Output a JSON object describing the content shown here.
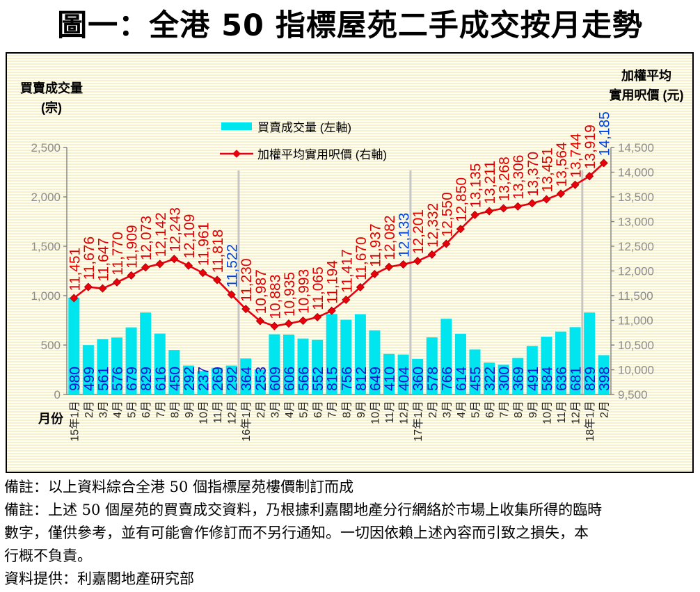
{
  "title": "圖一：全港 50 指標屋苑二手成交按月走勢",
  "legend": {
    "volume_label": "買賣成交量 (左軸)",
    "price_label": "加權平均實用呎價 (右軸)"
  },
  "axes": {
    "left_title_line1": "買賣成交量",
    "left_title_line2": "(宗)",
    "right_title_line1": "加權平均",
    "right_title_line2": "實用呎價 (元)",
    "x_title": "月份"
  },
  "chart_data": {
    "type": "bar+line",
    "title": "圖一：全港 50 指標屋苑二手成交按月走勢",
    "categories": [
      "15年1月",
      "2月",
      "3月",
      "4月",
      "5月",
      "6月",
      "7月",
      "8月",
      "9月",
      "10月",
      "11月",
      "12月",
      "16年1月",
      "2月",
      "3月",
      "4月",
      "5月",
      "6月",
      "7月",
      "8月",
      "9月",
      "10月",
      "11月",
      "12月",
      "17年1月",
      "2月",
      "3月",
      "4月",
      "5月",
      "6月",
      "7月",
      "8月",
      "9月",
      "10月",
      "11月",
      "12月",
      "18年1月",
      "2月"
    ],
    "series": [
      {
        "name": "買賣成交量 (左軸)",
        "type": "bar",
        "axis": "left",
        "values": [
          980,
          499,
          561,
          576,
          679,
          829,
          616,
          450,
          292,
          237,
          269,
          292,
          364,
          253,
          609,
          606,
          566,
          552,
          815,
          756,
          812,
          649,
          410,
          404,
          360,
          578,
          766,
          614,
          455,
          322,
          300,
          369,
          491,
          584,
          636,
          681,
          829,
          398
        ]
      },
      {
        "name": "加權平均實用呎價 (右軸)",
        "type": "line",
        "axis": "right",
        "values": [
          11451,
          11676,
          11647,
          11770,
          11909,
          12073,
          12142,
          12243,
          12109,
          11961,
          11818,
          11522,
          11230,
          10987,
          10883,
          10935,
          10993,
          11065,
          11194,
          11417,
          11670,
          11937,
          12082,
          12133,
          12201,
          12332,
          12550,
          12850,
          13135,
          13211,
          13268,
          13306,
          13370,
          13451,
          13564,
          13744,
          13919,
          14185
        ]
      }
    ],
    "left_axis": {
      "min": 0,
      "max": 2500,
      "ticks": [
        0,
        500,
        1000,
        1500,
        2000,
        2500
      ]
    },
    "right_axis": {
      "min": 9500,
      "max": 14500,
      "ticks": [
        9500,
        10000,
        10500,
        11000,
        11500,
        12000,
        12500,
        13000,
        13500,
        14000,
        14500
      ]
    },
    "highlighted_price_label_indices": [
      11,
      23,
      37
    ],
    "year_separator_after_indices": [
      11,
      23,
      35
    ],
    "grid": "vertical-year-separators-only",
    "legend_position": "top-center"
  },
  "colors": {
    "bar": "#00E5EE",
    "line": "#E8000D",
    "marker_edge": "#A50000",
    "bar_label": "#1414CC",
    "price_label": "#DD0000",
    "highlight_label": "#0044DD",
    "tick_label": "#8C8C8C",
    "axis_line": "#808080",
    "separator": "#C6C6C6"
  },
  "notes": [
    "備註：以上資料綜合全港 50 個指標屋苑樓價制訂而成",
    "備註：上述 50 個屋苑的買賣成交資料，乃根據利嘉閣地產分行網絡於市場上收集所得的臨時",
    "數字，僅供參考，並有可能會作修訂而不另行通知。一切因依賴上述內容而引致之損失，本",
    "行概不負責。",
    "資料提供：利嘉閣地產研究部"
  ]
}
